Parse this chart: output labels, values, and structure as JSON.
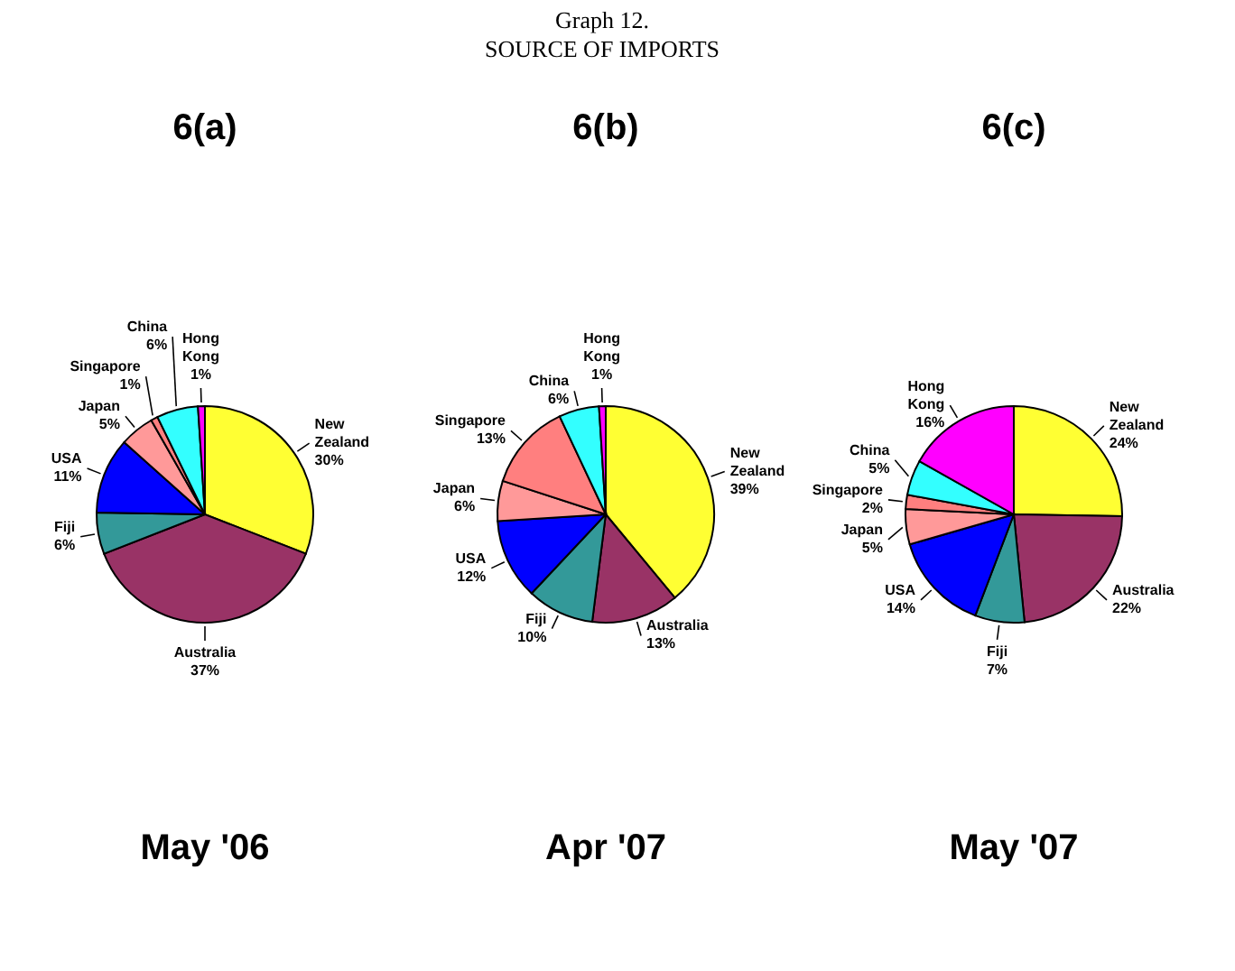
{
  "chart_data": [
    {
      "type": "other",
      "title": "Graph 12.",
      "subtitle": "SOURCE OF IMPORTS"
    },
    {
      "type": "pie",
      "title": "6(a)",
      "categories": [
        "New Zealand",
        "Australia",
        "Fiji",
        "USA",
        "Japan",
        "Singapore",
        "China",
        "Hong Kong"
      ],
      "values": [
        30,
        37,
        6,
        11,
        5,
        1,
        6,
        1
      ],
      "value_labels": [
        "30%",
        "37%",
        "6%",
        "11%",
        "5%",
        "1%",
        "6%",
        "1%"
      ],
      "colors": [
        "#ffff33",
        "#993366",
        "#339999",
        "#0000ff",
        "#ff9999",
        "#ff7f7f",
        "#33ffff",
        "#ff00ff"
      ],
      "annotations": [
        "May '06"
      ]
    },
    {
      "type": "pie",
      "title": "6(b)",
      "categories": [
        "New Zealand",
        "Australia",
        "Fiji",
        "USA",
        "Japan",
        "Singapore",
        "China",
        "Hong Kong"
      ],
      "values": [
        39,
        13,
        10,
        12,
        6,
        13,
        6,
        1
      ],
      "value_labels": [
        "39%",
        "13%",
        "10%",
        "12%",
        "6%",
        "13%",
        "6%",
        "1%"
      ],
      "colors": [
        "#ffff33",
        "#993366",
        "#339999",
        "#0000ff",
        "#ff9999",
        "#ff7f7f",
        "#33ffff",
        "#ff00ff"
      ],
      "annotations": [
        "Apr '07"
      ]
    },
    {
      "type": "pie",
      "title": "6(c)",
      "categories": [
        "New Zealand",
        "Australia",
        "Fiji",
        "USA",
        "Japan",
        "Singapore",
        "China",
        "Hong Kong"
      ],
      "values": [
        24,
        22,
        7,
        14,
        5,
        2,
        5,
        16
      ],
      "value_labels": [
        "24%",
        "22%",
        "7%",
        "14%",
        "5%",
        "2%",
        "5%",
        "16%"
      ],
      "colors": [
        "#ffff33",
        "#993366",
        "#339999",
        "#0000ff",
        "#ff9999",
        "#ff7f7f",
        "#33ffff",
        "#ff00ff"
      ],
      "annotations": [
        "May '07"
      ]
    }
  ]
}
